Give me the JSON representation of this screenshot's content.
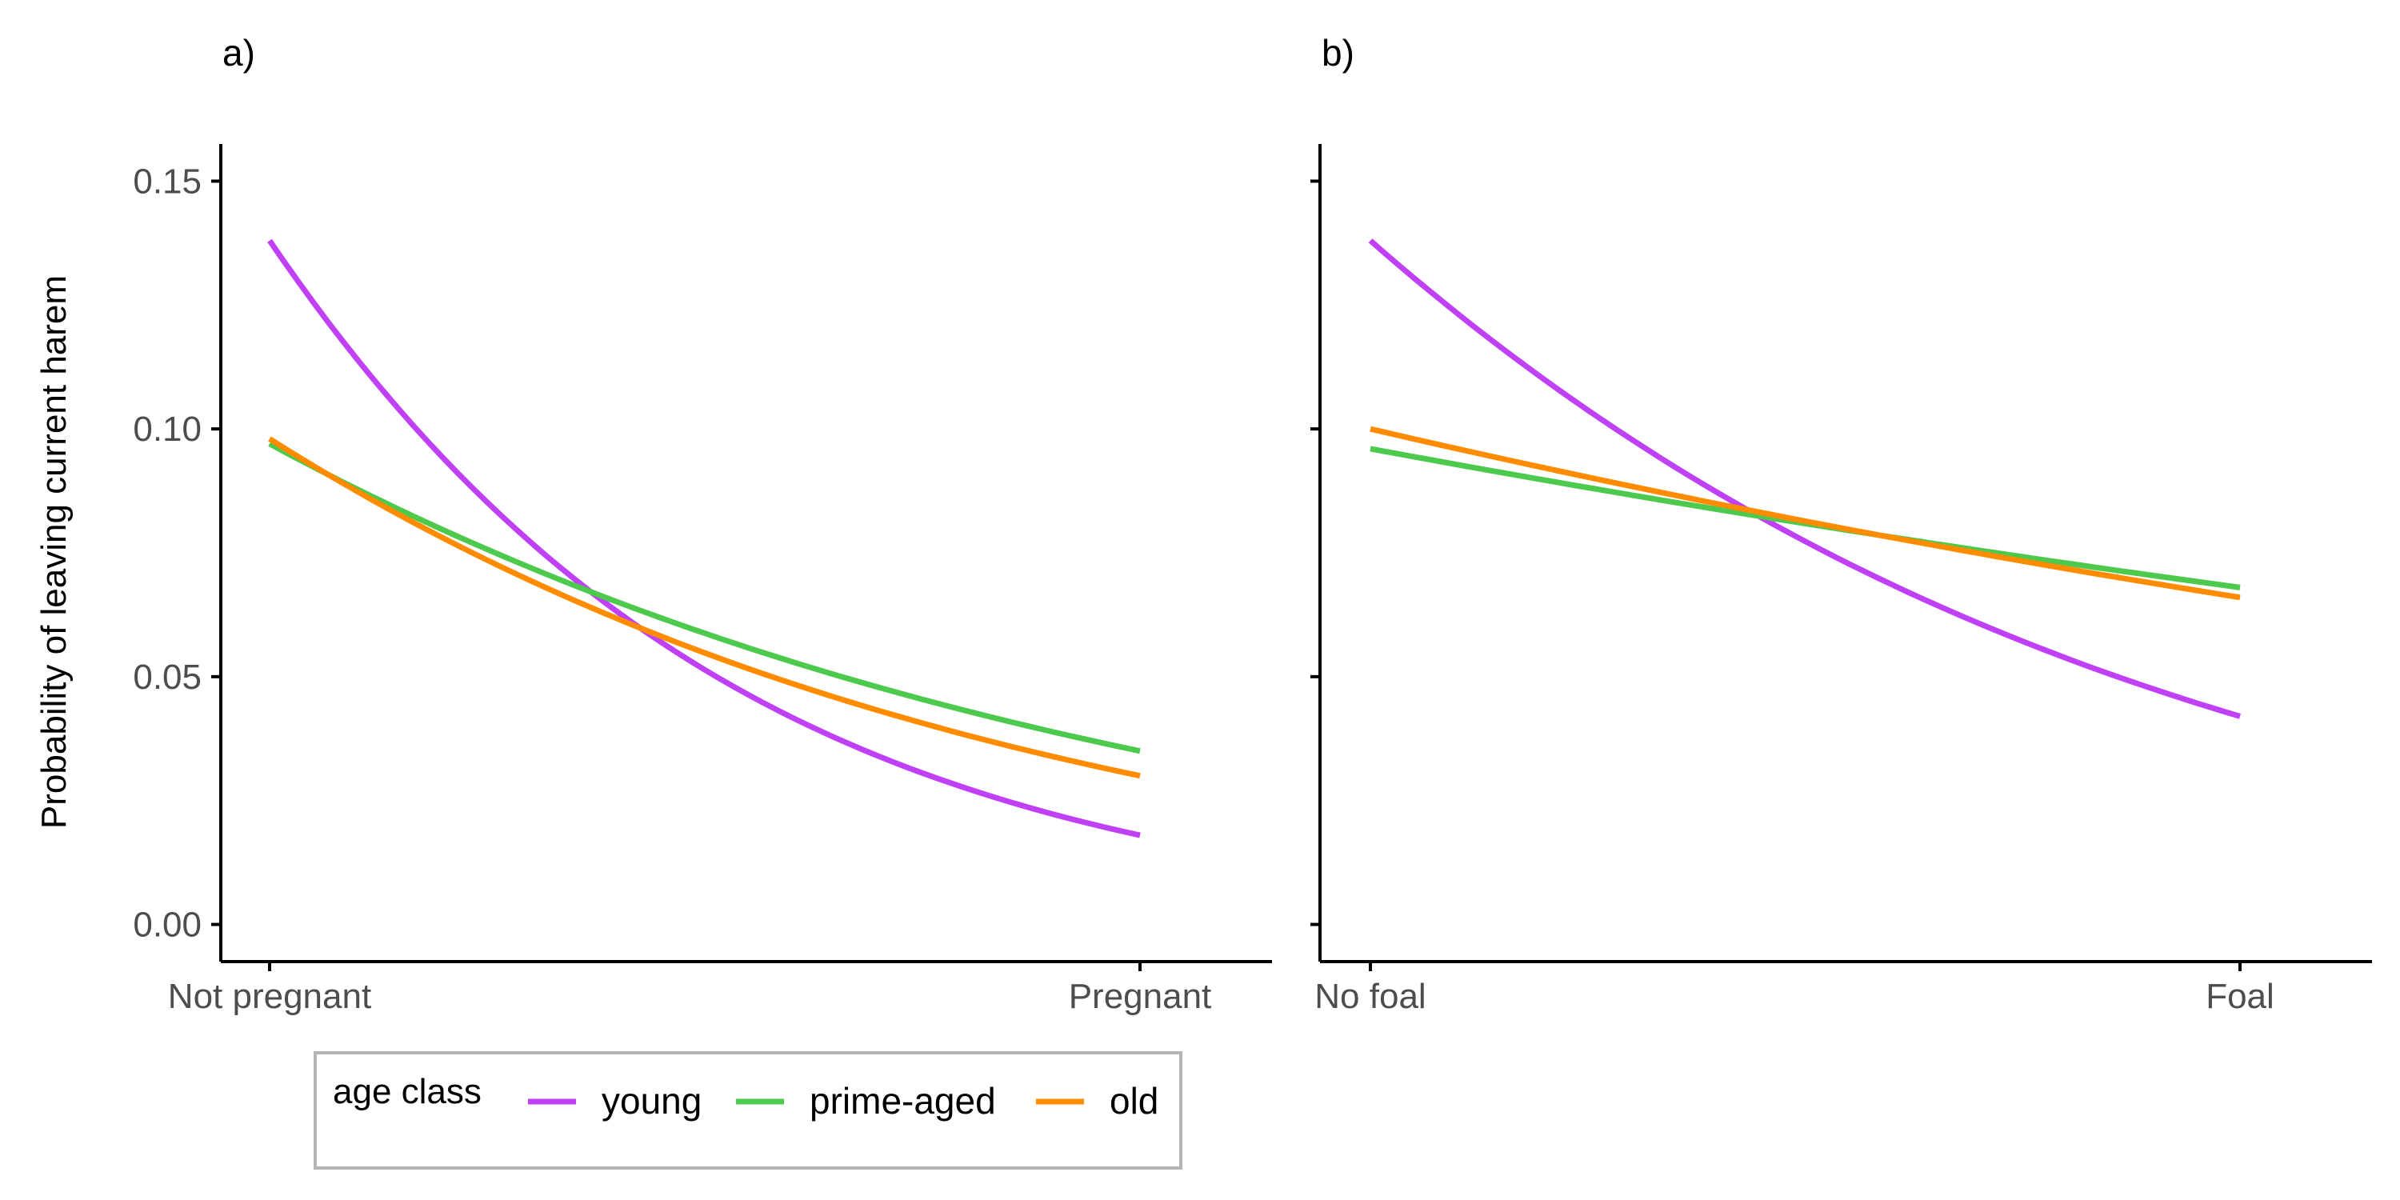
{
  "legend": {
    "title": "age class",
    "items": [
      {
        "label": "young",
        "color": "#bf40f5"
      },
      {
        "label": "prime-aged",
        "color": "#4dc94d"
      },
      {
        "label": "old",
        "color": "#ff8c00"
      }
    ]
  },
  "chart_data": [
    {
      "type": "line",
      "panel_label": "a)",
      "ylabel": "Probability of leaving current harem",
      "xlabel": "",
      "categories": [
        "Not pregnant",
        "Pregnant"
      ],
      "ylim": [
        -0.0075,
        0.1575
      ],
      "y_ticks": [
        "0.00",
        "0.05",
        "0.10",
        "0.15"
      ],
      "grid": false,
      "series": [
        {
          "name": "young",
          "color": "#bf40f5",
          "values": [
            0.138,
            0.018
          ]
        },
        {
          "name": "prime-aged",
          "color": "#4dc94d",
          "values": [
            0.097,
            0.035
          ]
        },
        {
          "name": "old",
          "color": "#ff8c00",
          "values": [
            0.098,
            0.03
          ]
        }
      ]
    },
    {
      "type": "line",
      "panel_label": "b)",
      "ylabel": "",
      "xlabel": "",
      "categories": [
        "No foal",
        "Foal"
      ],
      "ylim": [
        -0.0075,
        0.1575
      ],
      "y_ticks": [
        "",
        "",
        "",
        ""
      ],
      "grid": false,
      "series": [
        {
          "name": "young",
          "color": "#bf40f5",
          "values": [
            0.138,
            0.042
          ]
        },
        {
          "name": "prime-aged",
          "color": "#4dc94d",
          "values": [
            0.096,
            0.068
          ]
        },
        {
          "name": "old",
          "color": "#ff8c00",
          "values": [
            0.1,
            0.066
          ]
        }
      ]
    }
  ]
}
